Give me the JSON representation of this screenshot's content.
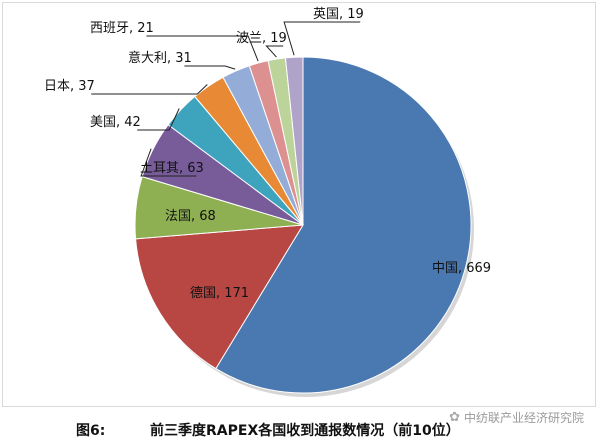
{
  "chart_data": {
    "type": "pie",
    "title": "",
    "slices": [
      {
        "label": "中国",
        "value": 669,
        "color": "#4a78b0"
      },
      {
        "label": "德国",
        "value": 171,
        "color": "#b84744"
      },
      {
        "label": "法国",
        "value": 68,
        "color": "#8eb052"
      },
      {
        "label": "土耳其",
        "value": 63,
        "color": "#785c9a"
      },
      {
        "label": "美国",
        "value": 42,
        "color": "#3ea4bd"
      },
      {
        "label": "日本",
        "value": 37,
        "color": "#e88a35"
      },
      {
        "label": "意大利",
        "value": 31,
        "color": "#94add8"
      },
      {
        "label": "西班牙",
        "value": 21,
        "color": "#dc9090"
      },
      {
        "label": "波兰",
        "value": 19,
        "color": "#bcd49a"
      },
      {
        "label": "英国",
        "value": 19,
        "color": "#b0a3c9"
      }
    ],
    "legend": "none"
  },
  "caption": {
    "label": "图6:",
    "text": "前三季度RAPEX各国收到通报数情况（前10位）"
  },
  "watermark": {
    "text": "中纺联产业经济研究院"
  }
}
